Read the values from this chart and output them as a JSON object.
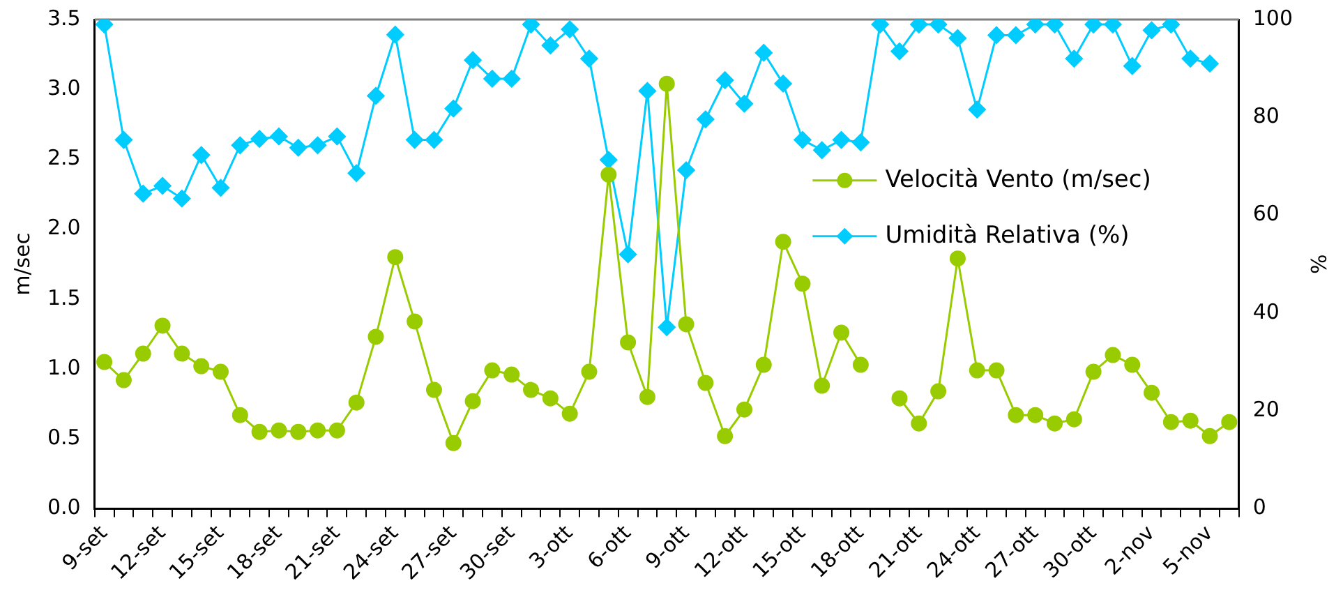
{
  "chart_data": {
    "type": "line",
    "categories": [
      "9-set",
      null,
      null,
      "12-set",
      null,
      null,
      "15-set",
      null,
      null,
      "18-set",
      null,
      null,
      "21-set",
      null,
      null,
      "24-set",
      null,
      null,
      "27-set",
      null,
      null,
      "30-set",
      null,
      null,
      "3-ott",
      null,
      null,
      "6-ott",
      null,
      null,
      "9-ott",
      null,
      null,
      "12-ott",
      null,
      null,
      "15-ott",
      null,
      null,
      "18-ott",
      null,
      null,
      "21-ott",
      null,
      null,
      "24-ott",
      null,
      null,
      "27-ott",
      null,
      null,
      "30-ott",
      null,
      null,
      "2-nov",
      null,
      null,
      "5-nov",
      null
    ],
    "series": [
      {
        "name": "Velocità Vento (m/sec)",
        "color": "#99cc00",
        "marker": "circle",
        "values": [
          1.05,
          0.92,
          1.11,
          1.31,
          1.11,
          1.02,
          0.98,
          0.67,
          0.55,
          0.56,
          0.55,
          0.56,
          0.56,
          0.76,
          1.23,
          1.8,
          1.34,
          0.85,
          0.47,
          0.77,
          0.99,
          0.96,
          0.85,
          0.79,
          0.68,
          0.98,
          2.39,
          1.19,
          0.8,
          3.04,
          1.32,
          0.9,
          0.52,
          0.71,
          1.03,
          1.91,
          1.61,
          0.88,
          1.26,
          1.03,
          null,
          0.79,
          0.61,
          0.84,
          1.79,
          0.99,
          0.99,
          0.67,
          0.67,
          0.61,
          0.64,
          0.98,
          1.1,
          1.03,
          0.83,
          0.62,
          0.63,
          0.52,
          0.62
        ]
      },
      {
        "name": "Umidità Relativa (%)",
        "color": "#00ccff",
        "marker": "diamond",
        "axis": "y2",
        "values": [
          99,
          75.4,
          64.4,
          66,
          63.4,
          72.3,
          65.6,
          74.3,
          75.6,
          76.1,
          73.8,
          74.3,
          76.1,
          68.6,
          84.4,
          96.9,
          75.4,
          75.4,
          81.8,
          91.7,
          87.9,
          87.9,
          99,
          94.7,
          98,
          92,
          71.3,
          52,
          85.4,
          37.1,
          69.2,
          79.6,
          87.6,
          82.8,
          93.2,
          86.9,
          75.4,
          73.3,
          75.4,
          74.9,
          99,
          93.5,
          99,
          99,
          96.2,
          81.6,
          96.8,
          96.8,
          99,
          99,
          92,
          99,
          99,
          90.5,
          97.8,
          99,
          92,
          91,
          null
        ]
      }
    ],
    "ylabel": "m/sec",
    "y2label": "%",
    "ylim": [
      0,
      3.5
    ],
    "yticks": [
      {
        "value": 0,
        "label": "0.0"
      },
      {
        "value": 0.5,
        "label": "0.5"
      },
      {
        "value": 1,
        "label": "1.0"
      },
      {
        "value": 1.5,
        "label": "1.5"
      },
      {
        "value": 2,
        "label": "2.0"
      },
      {
        "value": 2.5,
        "label": "2.5"
      },
      {
        "value": 3,
        "label": "3.0"
      },
      {
        "value": 3.5,
        "label": "3.5"
      }
    ],
    "y2lim": [
      0,
      100
    ],
    "y2ticks": [
      0,
      20,
      40,
      60,
      80,
      100
    ],
    "grid": false,
    "legend": "right",
    "line_style": "solid"
  }
}
